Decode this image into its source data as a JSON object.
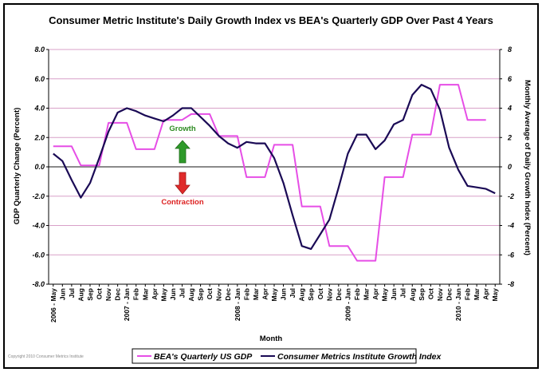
{
  "chart_data": {
    "type": "line",
    "title": "Consumer Metric Institute's Daily Growth Index vs BEA's Quarterly GDP Over Past 4 Years",
    "xlabel": "Month",
    "ylabel_left": "GDP Quarterly Change (Percent)",
    "ylabel_right": "Monthly Average of Daily Growth Index (Percent)",
    "ylim": [
      -8,
      8
    ],
    "left_tick_labels": [
      "8.0",
      "6.0",
      "4.0",
      "2.0",
      "0.0",
      "-2.0",
      "-4.0",
      "-6.0",
      "-8.0"
    ],
    "right_tick_labels": [
      "8",
      "6",
      "4",
      "2",
      "0",
      "-2",
      "-4",
      "-6",
      "-8"
    ],
    "categories": [
      "May",
      "Jun",
      "Jul",
      "Aug",
      "Sep",
      "Oct",
      "Nov",
      "Dec",
      "Jan",
      "Feb",
      "Mar",
      "Apr",
      "May",
      "Jun",
      "Jul",
      "Aug",
      "Sep",
      "Oct",
      "Nov",
      "Dec",
      "Jan",
      "Feb",
      "Mar",
      "Apr",
      "May",
      "Jun",
      "Jul",
      "Aug",
      "Sep",
      "Oct",
      "Nov",
      "Dec",
      "Jan",
      "Feb",
      "Mar",
      "Apr",
      "May",
      "Jun",
      "Jul",
      "Aug",
      "Sep",
      "Oct",
      "Nov",
      "Dec",
      "Jan",
      "Feb",
      "Mar",
      "Apr",
      "May"
    ],
    "year_labels": [
      {
        "index": 0,
        "label": "2006 - May"
      },
      {
        "index": 8,
        "label": "2007 - Jan"
      },
      {
        "index": 20,
        "label": "2008 - Jan"
      },
      {
        "index": 32,
        "label": "2009 - Jan"
      },
      {
        "index": 44,
        "label": "2010 - Jan"
      }
    ],
    "grid": true,
    "legend_position": "bottom",
    "series": [
      {
        "name": "BEA's Quarterly US GDP",
        "color": "#e64ee6",
        "values": [
          1.4,
          1.4,
          1.4,
          0.1,
          0.1,
          0.1,
          3.0,
          3.0,
          3.0,
          1.2,
          1.2,
          1.2,
          3.2,
          3.2,
          3.2,
          3.6,
          3.6,
          3.6,
          2.1,
          2.1,
          2.1,
          -0.7,
          -0.7,
          -0.7,
          1.5,
          1.5,
          1.5,
          -2.7,
          -2.7,
          -2.7,
          -5.4,
          -5.4,
          -5.4,
          -6.4,
          -6.4,
          -6.4,
          -0.7,
          -0.7,
          -0.7,
          2.2,
          2.2,
          2.2,
          5.6,
          5.6,
          5.6,
          3.2,
          3.2,
          3.2,
          null
        ]
      },
      {
        "name": "Consumer Metrics Institute Growth Index",
        "color": "#1a0a55",
        "values": [
          0.9,
          0.4,
          -0.9,
          -2.1,
          -1.1,
          0.6,
          2.4,
          3.7,
          4.0,
          3.8,
          3.5,
          3.3,
          3.1,
          3.5,
          4.0,
          4.0,
          3.4,
          2.8,
          2.1,
          1.6,
          1.3,
          1.7,
          1.6,
          1.6,
          0.6,
          -1.1,
          -3.3,
          -5.4,
          -5.6,
          -4.6,
          -3.6,
          -1.4,
          0.9,
          2.2,
          2.2,
          1.2,
          1.8,
          2.9,
          3.2,
          4.9,
          5.6,
          5.3,
          3.9,
          1.3,
          -0.2,
          -1.3,
          -1.4,
          -1.5,
          -1.8
        ]
      }
    ],
    "annotations": [
      {
        "text": "Growth",
        "color": "#2e8b22",
        "direction": "up"
      },
      {
        "text": "Contraction",
        "color": "#dd2222",
        "direction": "down"
      }
    ]
  },
  "copyright": "Copyright 2010 Consumer Metrics Institute"
}
